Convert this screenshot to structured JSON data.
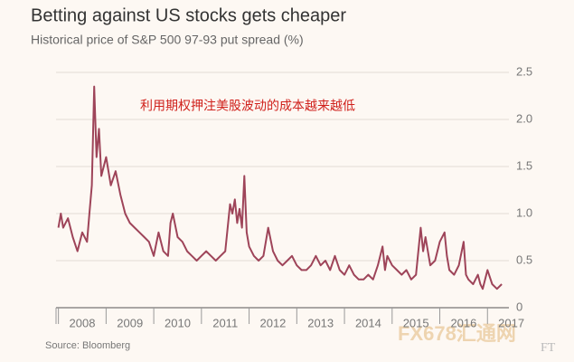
{
  "chart_data": {
    "type": "line",
    "title": "Betting against US stocks gets cheaper",
    "subtitle": "Historical price of S&P 500 97-93 put spread (%)",
    "source": "Source: Bloomberg",
    "annotation": "利用期权押注美股波动的成本越来越低",
    "watermark": "FX678汇通网",
    "watermark_mark": "FT",
    "grid": true,
    "xlim": [
      2007.95,
      2017.45
    ],
    "xticks": [
      2008,
      2009,
      2010,
      2011,
      2012,
      2013,
      2014,
      2015,
      2016,
      2017
    ],
    "ylim": [
      0,
      2.5
    ],
    "yticks": [
      0,
      0.5,
      {
        "value": 1.0,
        "label": "1.0"
      },
      1.5,
      {
        "value": 2.0,
        "label": "2.0"
      },
      2.5
    ],
    "x": [
      2008.0,
      2008.05,
      2008.1,
      2008.2,
      2008.3,
      2008.4,
      2008.5,
      2008.6,
      2008.65,
      2008.7,
      2008.75,
      2008.8,
      2008.85,
      2008.9,
      2009.0,
      2009.1,
      2009.2,
      2009.3,
      2009.4,
      2009.5,
      2009.6,
      2009.7,
      2009.8,
      2009.9,
      2010.0,
      2010.1,
      2010.2,
      2010.3,
      2010.35,
      2010.4,
      2010.5,
      2010.6,
      2010.7,
      2010.8,
      2010.9,
      2011.0,
      2011.1,
      2011.2,
      2011.3,
      2011.4,
      2011.5,
      2011.6,
      2011.65,
      2011.7,
      2011.75,
      2011.8,
      2011.85,
      2011.9,
      2011.95,
      2012.0,
      2012.1,
      2012.2,
      2012.3,
      2012.4,
      2012.5,
      2012.6,
      2012.7,
      2012.8,
      2012.9,
      2013.0,
      2013.1,
      2013.2,
      2013.3,
      2013.4,
      2013.5,
      2013.6,
      2013.7,
      2013.8,
      2013.9,
      2014.0,
      2014.1,
      2014.2,
      2014.3,
      2014.4,
      2014.5,
      2014.6,
      2014.7,
      2014.8,
      2014.85,
      2014.9,
      2015.0,
      2015.1,
      2015.2,
      2015.3,
      2015.4,
      2015.5,
      2015.6,
      2015.65,
      2015.7,
      2015.8,
      2015.9,
      2016.0,
      2016.1,
      2016.15,
      2016.2,
      2016.3,
      2016.4,
      2016.5,
      2016.55,
      2016.6,
      2016.7,
      2016.8,
      2016.85,
      2016.9,
      2017.0,
      2017.1,
      2017.2,
      2017.3
    ],
    "series": [
      {
        "color": "#9e4459",
        "values": [
          0.85,
          1.0,
          0.85,
          0.95,
          0.75,
          0.6,
          0.8,
          0.7,
          1.0,
          1.3,
          2.35,
          1.6,
          1.9,
          1.4,
          1.6,
          1.3,
          1.45,
          1.2,
          1.0,
          0.9,
          0.85,
          0.8,
          0.75,
          0.7,
          0.55,
          0.8,
          0.6,
          0.55,
          0.9,
          1.0,
          0.75,
          0.7,
          0.6,
          0.55,
          0.5,
          0.55,
          0.6,
          0.55,
          0.5,
          0.55,
          0.6,
          1.1,
          1.0,
          1.15,
          0.9,
          1.05,
          0.85,
          1.4,
          0.8,
          0.65,
          0.55,
          0.5,
          0.55,
          0.85,
          0.6,
          0.5,
          0.45,
          0.5,
          0.55,
          0.45,
          0.4,
          0.4,
          0.45,
          0.55,
          0.45,
          0.5,
          0.4,
          0.55,
          0.4,
          0.35,
          0.45,
          0.35,
          0.3,
          0.3,
          0.35,
          0.3,
          0.45,
          0.65,
          0.4,
          0.55,
          0.45,
          0.4,
          0.35,
          0.4,
          0.3,
          0.35,
          0.85,
          0.6,
          0.75,
          0.45,
          0.5,
          0.7,
          0.8,
          0.55,
          0.4,
          0.35,
          0.45,
          0.7,
          0.35,
          0.3,
          0.25,
          0.35,
          0.25,
          0.2,
          0.4,
          0.25,
          0.2,
          0.25
        ]
      }
    ]
  }
}
